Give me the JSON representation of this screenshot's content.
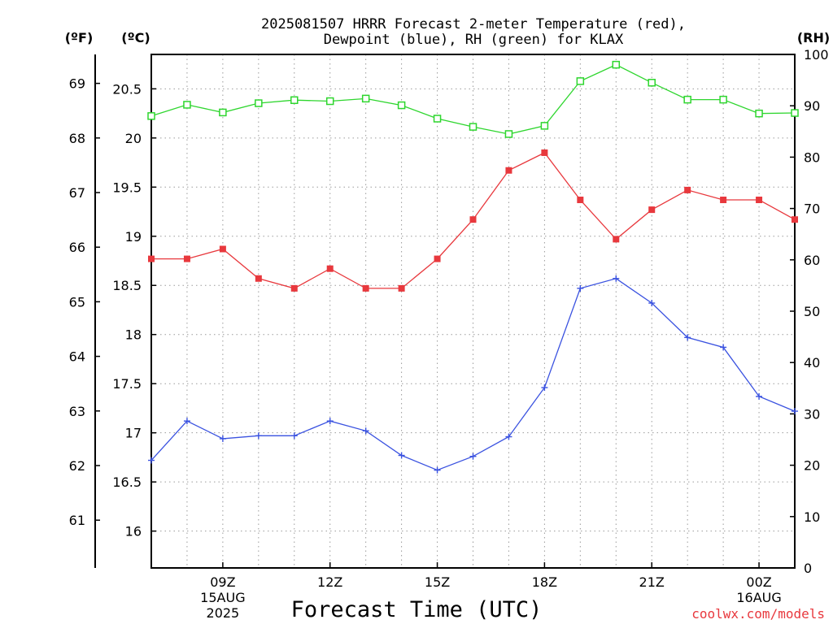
{
  "title": {
    "line1": "2025081507 HRRR Forecast 2-meter Temperature (red),",
    "line2": "Dewpoint (blue), RH (green) for KLAX"
  },
  "units": {
    "fahrenheit": "(ºF)",
    "celsius": "(ºC)",
    "rh": "(RH)"
  },
  "xlabel": "Forecast Time (UTC)",
  "credit": "coolwx.com/models",
  "colors": {
    "temperature": "#e8383d",
    "dewpoint": "#3a52e0",
    "rh": "#2ed62e",
    "grid": "#9a9a9a",
    "credit": "#e8383d"
  },
  "chart_data": {
    "type": "line",
    "x_unit": "forecast hour from 2025-08-15 07Z",
    "x": [
      0,
      1,
      2,
      3,
      4,
      5,
      6,
      7,
      8,
      9,
      10,
      11,
      12,
      13,
      14,
      15,
      16,
      17,
      18
    ],
    "xlim": [
      0,
      18
    ],
    "x_ticks": [
      {
        "x": 2,
        "label": "09Z",
        "sub1": "15AUG",
        "sub2": "2025"
      },
      {
        "x": 5,
        "label": "12Z",
        "sub1": "",
        "sub2": ""
      },
      {
        "x": 8,
        "label": "15Z",
        "sub1": "",
        "sub2": ""
      },
      {
        "x": 11,
        "label": "18Z",
        "sub1": "",
        "sub2": ""
      },
      {
        "x": 14,
        "label": "21Z",
        "sub1": "",
        "sub2": ""
      },
      {
        "x": 17,
        "label": "00Z",
        "sub1": "16AUG",
        "sub2": ""
      }
    ],
    "grid": true,
    "y_left_c": {
      "label": "(ºC)",
      "ylim": [
        15.625,
        20.85
      ],
      "ticks": [
        16,
        16.5,
        17,
        17.5,
        18,
        18.5,
        19,
        19.5,
        20,
        20.5
      ]
    },
    "y_left_f": {
      "label": "(ºF)",
      "ticks": [
        61,
        62,
        63,
        64,
        65,
        66,
        67,
        68,
        69
      ]
    },
    "y_right_rh": {
      "label": "(RH)",
      "ylim": [
        0,
        100
      ],
      "ticks": [
        0,
        10,
        20,
        30,
        40,
        50,
        60,
        70,
        80,
        90,
        100
      ]
    },
    "series": [
      {
        "name": "Temperature",
        "axis": "celsius",
        "marker": "filled-square",
        "values": [
          18.77,
          18.77,
          18.87,
          18.57,
          18.47,
          18.67,
          18.47,
          18.47,
          18.77,
          19.17,
          19.67,
          19.85,
          19.37,
          18.97,
          19.27,
          19.47,
          19.37,
          19.37,
          19.17
        ]
      },
      {
        "name": "Dewpoint",
        "axis": "celsius",
        "marker": "plus",
        "values": [
          16.72,
          17.12,
          16.94,
          16.97,
          16.97,
          17.12,
          17.02,
          16.77,
          16.62,
          16.76,
          16.96,
          17.46,
          18.47,
          18.57,
          18.32,
          17.97,
          17.87,
          17.37,
          17.22
        ]
      },
      {
        "name": "RH",
        "axis": "rh",
        "marker": "open-square",
        "values": [
          88.0,
          90.2,
          88.7,
          90.5,
          91.1,
          90.9,
          91.4,
          90.1,
          87.5,
          85.9,
          84.5,
          86.1,
          94.8,
          98.0,
          94.5,
          91.2,
          91.2,
          88.5,
          88.6
        ]
      }
    ]
  }
}
